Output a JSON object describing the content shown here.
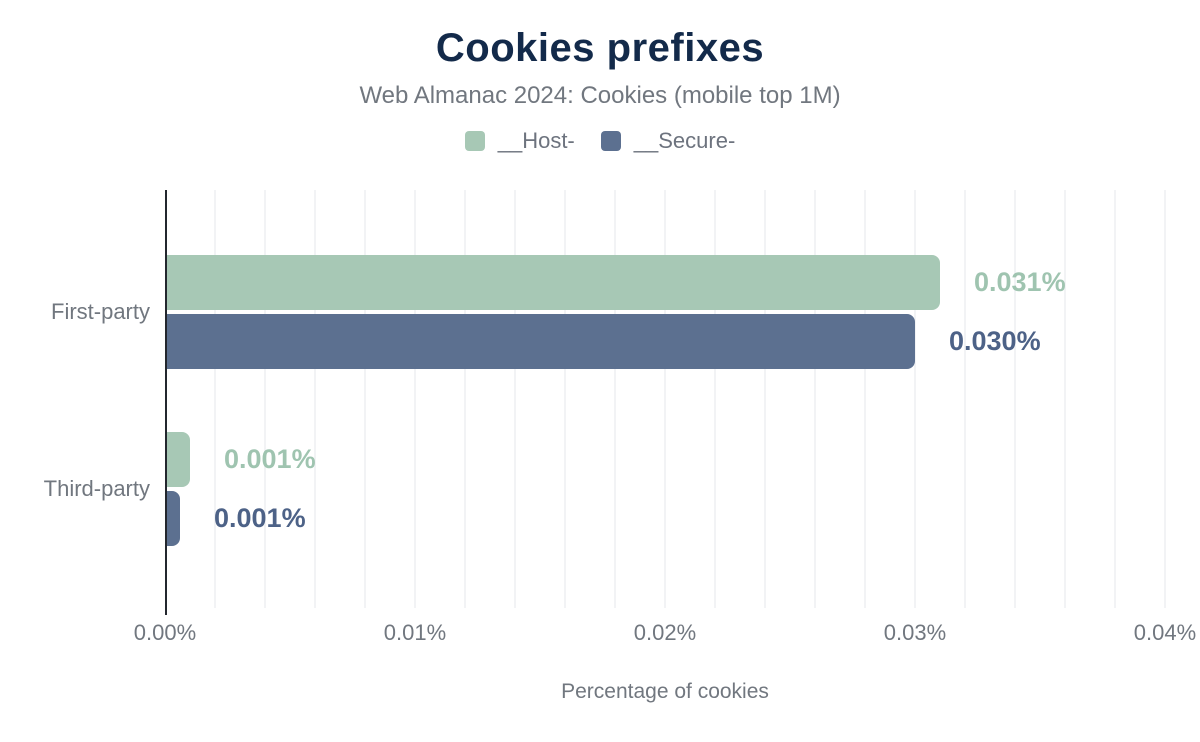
{
  "header": {
    "title": "Cookies prefixes",
    "subtitle": "Web Almanac 2024: Cookies (mobile top 1M)"
  },
  "chart_data": {
    "type": "bar",
    "orientation": "horizontal",
    "title": "Cookies prefixes",
    "subtitle": "Web Almanac 2024: Cookies (mobile top 1M)",
    "categories": [
      "First-party",
      "Third-party"
    ],
    "series": [
      {
        "name": "__Host-",
        "color": "#a7c8b5",
        "label_color": "#9fc4b0",
        "values": [
          0.031,
          0.001
        ],
        "value_labels": [
          "0.031%",
          "0.001%"
        ]
      },
      {
        "name": "__Secure-",
        "color": "#5c7090",
        "label_color": "#4d6287",
        "values": [
          0.03,
          0.0006
        ],
        "value_labels": [
          "0.030%",
          "0.001%"
        ]
      }
    ],
    "xlabel": "Percentage of cookies",
    "xlim": [
      0,
      0.04
    ],
    "xticks": [
      {
        "value": 0.0,
        "label": "0.00%"
      },
      {
        "value": 0.01,
        "label": "0.01%"
      },
      {
        "value": 0.02,
        "label": "0.02%"
      },
      {
        "value": 0.03,
        "label": "0.03%"
      },
      {
        "value": 0.04,
        "label": "0.04%"
      }
    ],
    "grid_step": 0.002,
    "grid": true,
    "legend_position": "top"
  },
  "colors": {
    "title": "#132a4a",
    "muted_text": "#71777f",
    "axis_line": "#23272e",
    "gridline": "#f2f3f5",
    "background": "#ffffff"
  }
}
